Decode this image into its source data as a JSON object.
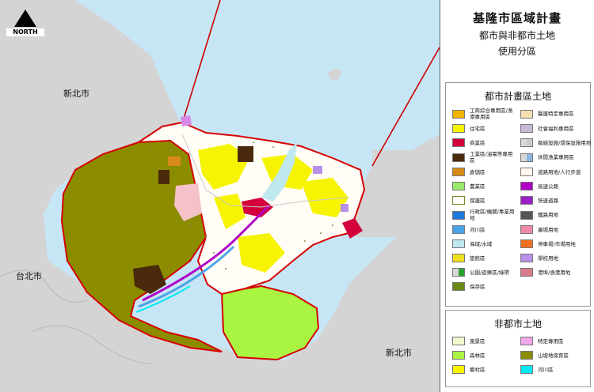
{
  "title": {
    "main": "基隆市區域計畫",
    "sub1": "都市與非都市土地",
    "sub2": "使用分區"
  },
  "north_label": "NORTH",
  "map_labels": {
    "newtaipei_top": "新北市",
    "taipei": "台北市",
    "newtaipei_bottom": "新北市"
  },
  "colors": {
    "sea": "#c7e6f5",
    "neighbor_land": "#d4d4d4",
    "county_boundary": "#cc0000",
    "boundary_outline": "#d60000",
    "forest": "#8b8c00",
    "agriculture": "#aaf542",
    "rural": "#f3ef5a",
    "conservation": "#ffffff",
    "residential": "#f6f400",
    "commercial": "#d3003b",
    "industrial": "#4a2a0c",
    "road": "#f0efef",
    "highway": "#b000c8",
    "harbor_water": "#bfe8ef",
    "river": "#4aa3e6"
  },
  "legend_urban": {
    "heading": "都市計畫區土地",
    "items": [
      {
        "label": "工商綜合專用區/漁港專用區",
        "color": "#f2b400",
        "style": "solid"
      },
      {
        "label": "醫護特定專用區",
        "color": "#f5e0b0",
        "style": "solid"
      },
      {
        "label": "住宅區",
        "color": "#f6f400",
        "style": "solid"
      },
      {
        "label": "社會福利專用區",
        "color": "#c8b8d8",
        "style": "solid"
      },
      {
        "label": "商業區",
        "color": "#d3003b",
        "style": "solid"
      },
      {
        "label": "鄰避設施/環保設施用地",
        "color": "#cccccc",
        "style": "half"
      },
      {
        "label": "工業區/油電等專用區",
        "color": "#4a2a0c",
        "style": "solid"
      },
      {
        "label": "休閒漁業專用區",
        "color": "#8ab6e0",
        "style": "half"
      },
      {
        "label": "倉儲區",
        "color": "#d88a18",
        "style": "solid"
      },
      {
        "label": "道路用地/人行步道",
        "color": "#fff6f0",
        "style": "solid"
      },
      {
        "label": "農業區",
        "color": "#98e86a",
        "style": "solid"
      },
      {
        "label": "高速公路",
        "color": "#b000c8",
        "style": "solid"
      },
      {
        "label": "保護區",
        "color": "#ffffff",
        "style": "outline"
      },
      {
        "label": "快速道路",
        "color": "#9c1ec8",
        "style": "solid"
      },
      {
        "label": "行政區/機關/事業用地",
        "color": "#1e7ad8",
        "style": "solid"
      },
      {
        "label": "鐵路用地",
        "color": "#555555",
        "style": "solid"
      },
      {
        "label": "河川區",
        "color": "#4aa3e6",
        "style": "solid"
      },
      {
        "label": "廣場用地",
        "color": "#f08aa8",
        "style": "solid"
      },
      {
        "label": "海域/水域",
        "color": "#bfe8ef",
        "style": "solid"
      },
      {
        "label": "停車場/市場用地",
        "color": "#f07020",
        "style": "solid"
      },
      {
        "label": "旅館區",
        "color": "#f0e020",
        "style": "solid"
      },
      {
        "label": "學校用地",
        "color": "#b890e8",
        "style": "solid"
      },
      {
        "label": "公園/遊樂區/綠帶",
        "color": "#2e9e2e",
        "style": "half"
      },
      {
        "label": "港埠/漁港用地",
        "color": "#d87a8a",
        "style": "solid"
      },
      {
        "label": "保存區",
        "color": "#6a8a1a",
        "style": "solid"
      }
    ]
  },
  "legend_nonurban": {
    "heading": "非都市土地",
    "items": [
      {
        "label": "風景區",
        "color": "#f0f8d0",
        "style": "solid"
      },
      {
        "label": "特定專用區",
        "color": "#f0a8e8",
        "style": "solid"
      },
      {
        "label": "森林區",
        "color": "#aaf542",
        "style": "solid"
      },
      {
        "label": "山坡地保育區",
        "color": "#8b8c00",
        "style": "solid"
      },
      {
        "label": "鄉村區",
        "color": "#f6f400",
        "style": "solid"
      },
      {
        "label": "河川區",
        "color": "#00e8f0",
        "style": "solid"
      }
    ]
  }
}
